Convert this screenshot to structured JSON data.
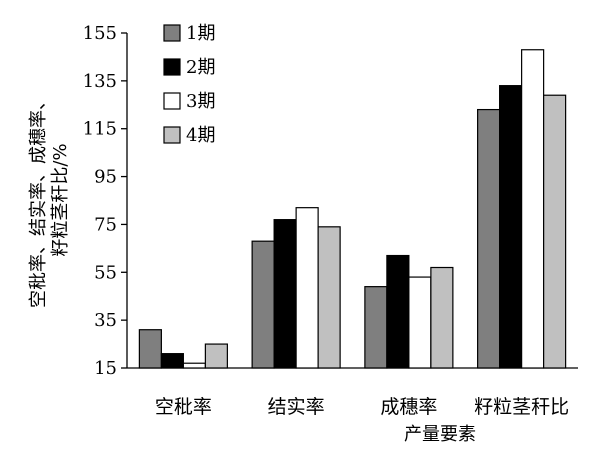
{
  "chart_data": {
    "type": "bar",
    "categories": [
      "空秕率",
      "结实率",
      "成穗率",
      "籽粒茎秆比"
    ],
    "series": [
      {
        "name": "1期",
        "color": "#7f7f7f",
        "values": [
          31,
          68,
          49,
          123
        ]
      },
      {
        "name": "2期",
        "color": "#000000",
        "values": [
          21,
          77,
          62,
          133
        ]
      },
      {
        "name": "3期",
        "color": "#ffffff",
        "values": [
          17,
          82,
          53,
          148
        ]
      },
      {
        "name": "4期",
        "color": "#c0c0c0",
        "values": [
          25,
          74,
          57,
          129
        ]
      }
    ],
    "xlabel": "产量要素",
    "ylabel_lines": [
      "空秕率、结实率、成穗率、",
      "籽粒茎秆比/%"
    ],
    "ylim": [
      15,
      155
    ],
    "yticks": [
      15,
      35,
      55,
      75,
      95,
      115,
      135,
      155
    ],
    "legend_position": "top-left",
    "grid": false
  }
}
